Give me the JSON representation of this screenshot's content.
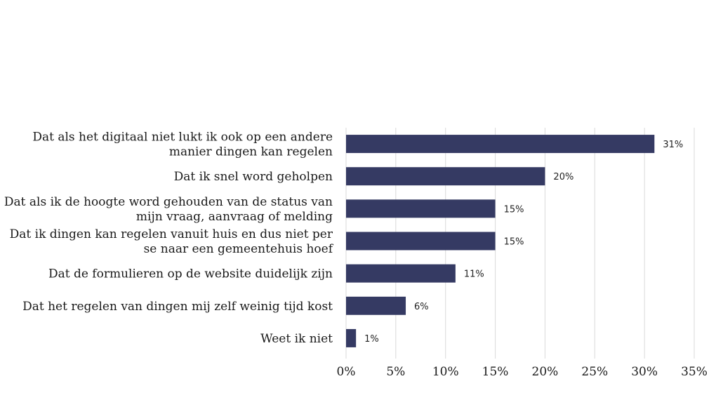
{
  "chart_data": {
    "type": "bar",
    "orientation": "horizontal",
    "categories": [
      [
        "Dat als het digitaal niet lukt ik ook op een andere",
        "manier dingen kan regelen"
      ],
      [
        "Dat ik snel word geholpen"
      ],
      [
        "Dat als ik de hoogte word gehouden van de status van",
        "mijn vraag, aanvraag of melding"
      ],
      [
        "Dat ik dingen kan regelen vanuit huis en dus niet per",
        "se naar een gemeentehuis hoef"
      ],
      [
        "Dat de formulieren op de website duidelijk zijn"
      ],
      [
        "Dat het regelen van dingen mij zelf weinig tijd kost"
      ],
      [
        "Weet ik niet"
      ]
    ],
    "values": [
      31,
      20,
      15,
      15,
      11,
      6,
      1
    ],
    "value_labels": [
      "31%",
      "20%",
      "15%",
      "15%",
      "11%",
      "6%",
      "1%"
    ],
    "x_ticks": [
      0,
      5,
      10,
      15,
      20,
      25,
      30,
      35
    ],
    "x_tick_labels": [
      "0%",
      "5%",
      "10%",
      "15%",
      "20%",
      "25%",
      "30%",
      "35%"
    ],
    "xlim": [
      0,
      35
    ],
    "grid": "vertical",
    "legend": "none",
    "bar_color": "#353a63"
  }
}
